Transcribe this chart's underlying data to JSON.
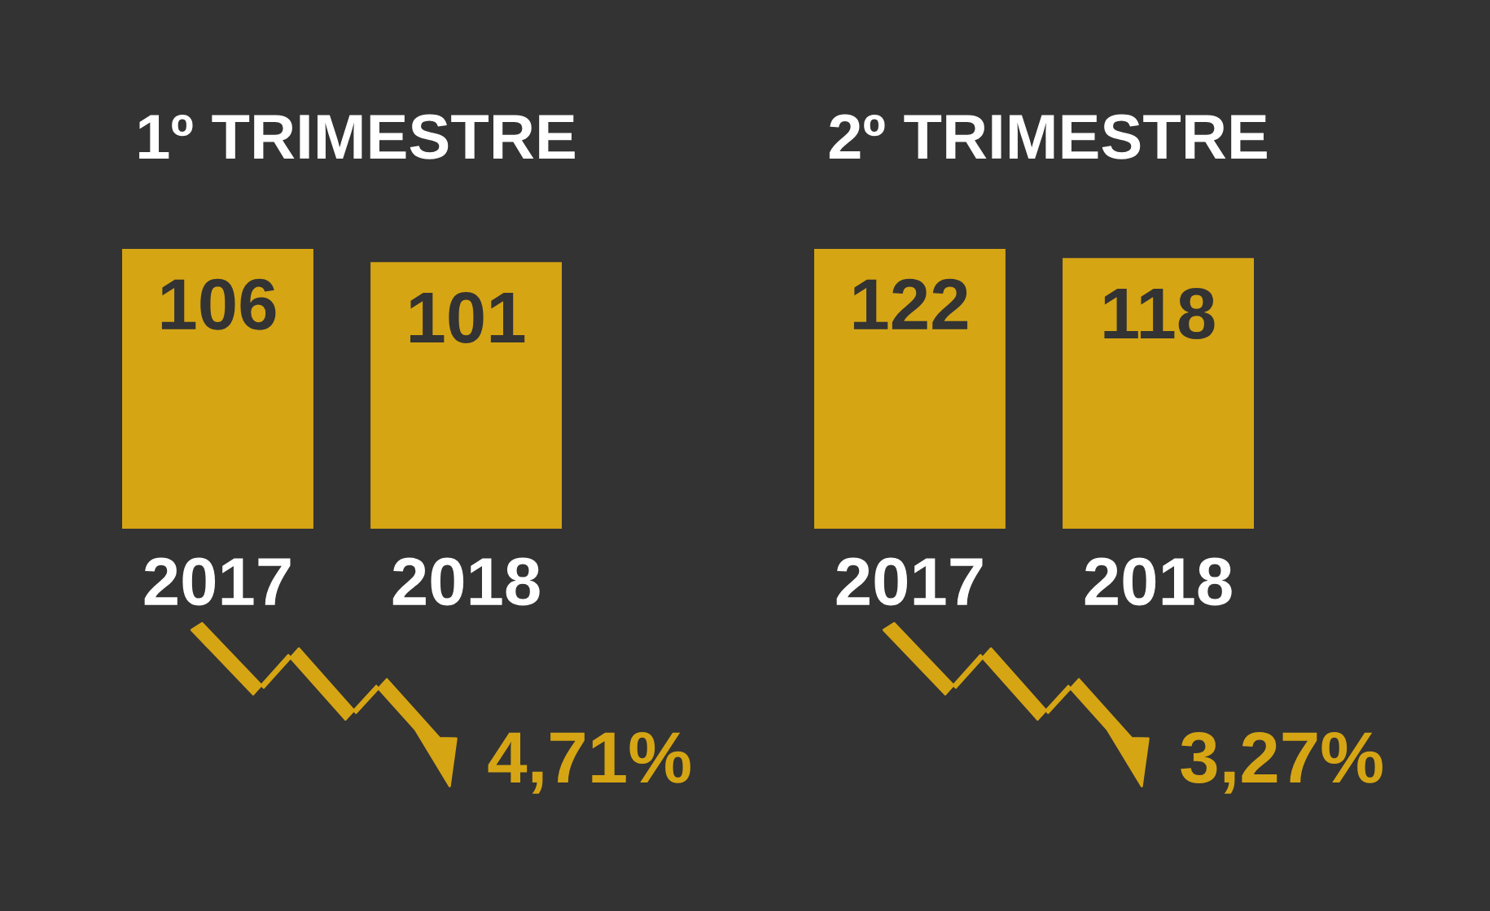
{
  "chart_data": [
    {
      "type": "bar",
      "title": "1º TRIMESTRE",
      "categories": [
        "2017",
        "2018"
      ],
      "values": [
        106,
        101
      ],
      "color": "#d6a514",
      "data_labels": true,
      "tick_labels": "x",
      "annotations": [
        "4,71%"
      ]
    },
    {
      "type": "bar",
      "title": "2º TRIMESTRE",
      "categories": [
        "2017",
        "2018"
      ],
      "values": [
        122,
        118
      ],
      "color": "#d6a514",
      "data_labels": true,
      "tick_labels": "x",
      "annotations": [
        "3,27%"
      ]
    }
  ]
}
